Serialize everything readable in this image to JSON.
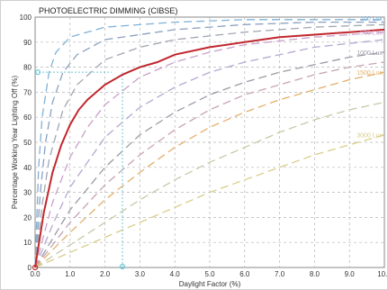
{
  "chart_data": {
    "type": "line",
    "title": "PHOTOELECTRIC DIMMING (CIBSE)",
    "xlabel": "Daylight Factor (%)",
    "ylabel": "Percentage Working Year Lighting Off (%)",
    "xlim": [
      0,
      10
    ],
    "ylim": [
      0,
      100
    ],
    "xticks": [
      "0.0",
      "1.0",
      "2.0",
      "3.0",
      "4.0",
      "5.0",
      "6.0",
      "7.0",
      "8.0",
      "9.0",
      "10.0"
    ],
    "yticks": [
      "0",
      "10",
      "20",
      "30",
      "40",
      "50",
      "60",
      "70",
      "80",
      "90",
      "100"
    ],
    "grid": true,
    "highlight_series": {
      "color": "#c0272d",
      "x": [
        0,
        0.25,
        0.5,
        0.75,
        1,
        1.25,
        1.5,
        1.75,
        2,
        2.5,
        3,
        3.5,
        4,
        5,
        6,
        7,
        8,
        9,
        10
      ],
      "y": [
        0,
        22,
        38,
        49,
        57,
        63,
        67,
        70,
        73,
        77,
        80,
        82,
        85,
        88,
        90,
        92,
        93,
        94,
        95
      ]
    },
    "series": [
      {
        "name": "",
        "color": "#7fb2d8",
        "x": [
          0,
          0.1,
          0.2,
          0.4,
          0.6,
          1,
          2,
          4,
          6,
          8,
          10
        ],
        "y": [
          0,
          40,
          60,
          78,
          86,
          92,
          96,
          98,
          99,
          99,
          99
        ]
      },
      {
        "name": "",
        "color": "#8aa0bf",
        "x": [
          0,
          0.15,
          0.3,
          0.5,
          0.8,
          1.2,
          2,
          4,
          6,
          8,
          10
        ],
        "y": [
          0,
          30,
          50,
          66,
          78,
          85,
          91,
          95,
          97,
          98,
          98
        ]
      },
      {
        "name": "",
        "color": "#a0a6b2",
        "x": [
          0,
          0.2,
          0.4,
          0.8,
          1.2,
          2,
          3,
          4,
          6,
          8,
          10
        ],
        "y": [
          0,
          25,
          43,
          63,
          73,
          83,
          88,
          91,
          94,
          96,
          97
        ]
      },
      {
        "name": "500 Lux",
        "color": "#c9a0c9",
        "x": [
          0,
          0.5,
          1,
          1.5,
          2,
          3,
          4,
          5,
          6,
          8,
          10
        ],
        "y": [
          0,
          26,
          44,
          56,
          65,
          76,
          82,
          86,
          89,
          92,
          94
        ]
      },
      {
        "name": "",
        "color": "#b5a8d0",
        "x": [
          0,
          0.5,
          1,
          2,
          3,
          4,
          5,
          6,
          7,
          8,
          10
        ],
        "y": [
          0,
          17,
          32,
          52,
          64,
          72,
          78,
          82,
          85,
          88,
          91
        ]
      },
      {
        "name": "1000 Lux",
        "color": "#9a9aa6",
        "x": [
          0,
          1,
          2,
          3,
          4,
          5,
          6,
          7,
          8,
          9,
          10
        ],
        "y": [
          0,
          23,
          40,
          53,
          62,
          69,
          74,
          78,
          81,
          84,
          86
        ]
      },
      {
        "name": "",
        "color": "#c7a3b6",
        "x": [
          0,
          1,
          2,
          3,
          4,
          5,
          6,
          7,
          8,
          9,
          10
        ],
        "y": [
          0,
          18,
          33,
          45,
          55,
          63,
          69,
          73,
          77,
          80,
          82
        ]
      },
      {
        "name": "1500 Lux",
        "color": "#e3b06a",
        "x": [
          0,
          1,
          2,
          3,
          4,
          5,
          6,
          7,
          8,
          9,
          10
        ],
        "y": [
          0,
          14,
          27,
          38,
          48,
          56,
          62,
          67,
          71,
          75,
          78
        ]
      },
      {
        "name": "",
        "color": "#c8c8a8",
        "x": [
          0,
          1,
          2,
          3,
          4,
          5,
          6,
          7,
          8,
          9,
          10
        ],
        "y": [
          0,
          9,
          18,
          27,
          35,
          42,
          48,
          54,
          59,
          63,
          66
        ]
      },
      {
        "name": "3000 Lux",
        "color": "#d9cd8a",
        "x": [
          0,
          1,
          2,
          3,
          4,
          5,
          6,
          7,
          8,
          9,
          10
        ],
        "y": [
          0,
          6,
          12,
          18,
          24,
          30,
          35,
          40,
          45,
          49,
          53
        ]
      }
    ],
    "marker_lines": {
      "color": "#6fc8d8",
      "horizontal_y": 78,
      "vertical_x": 2.5
    },
    "top_label": "100 Lux"
  }
}
